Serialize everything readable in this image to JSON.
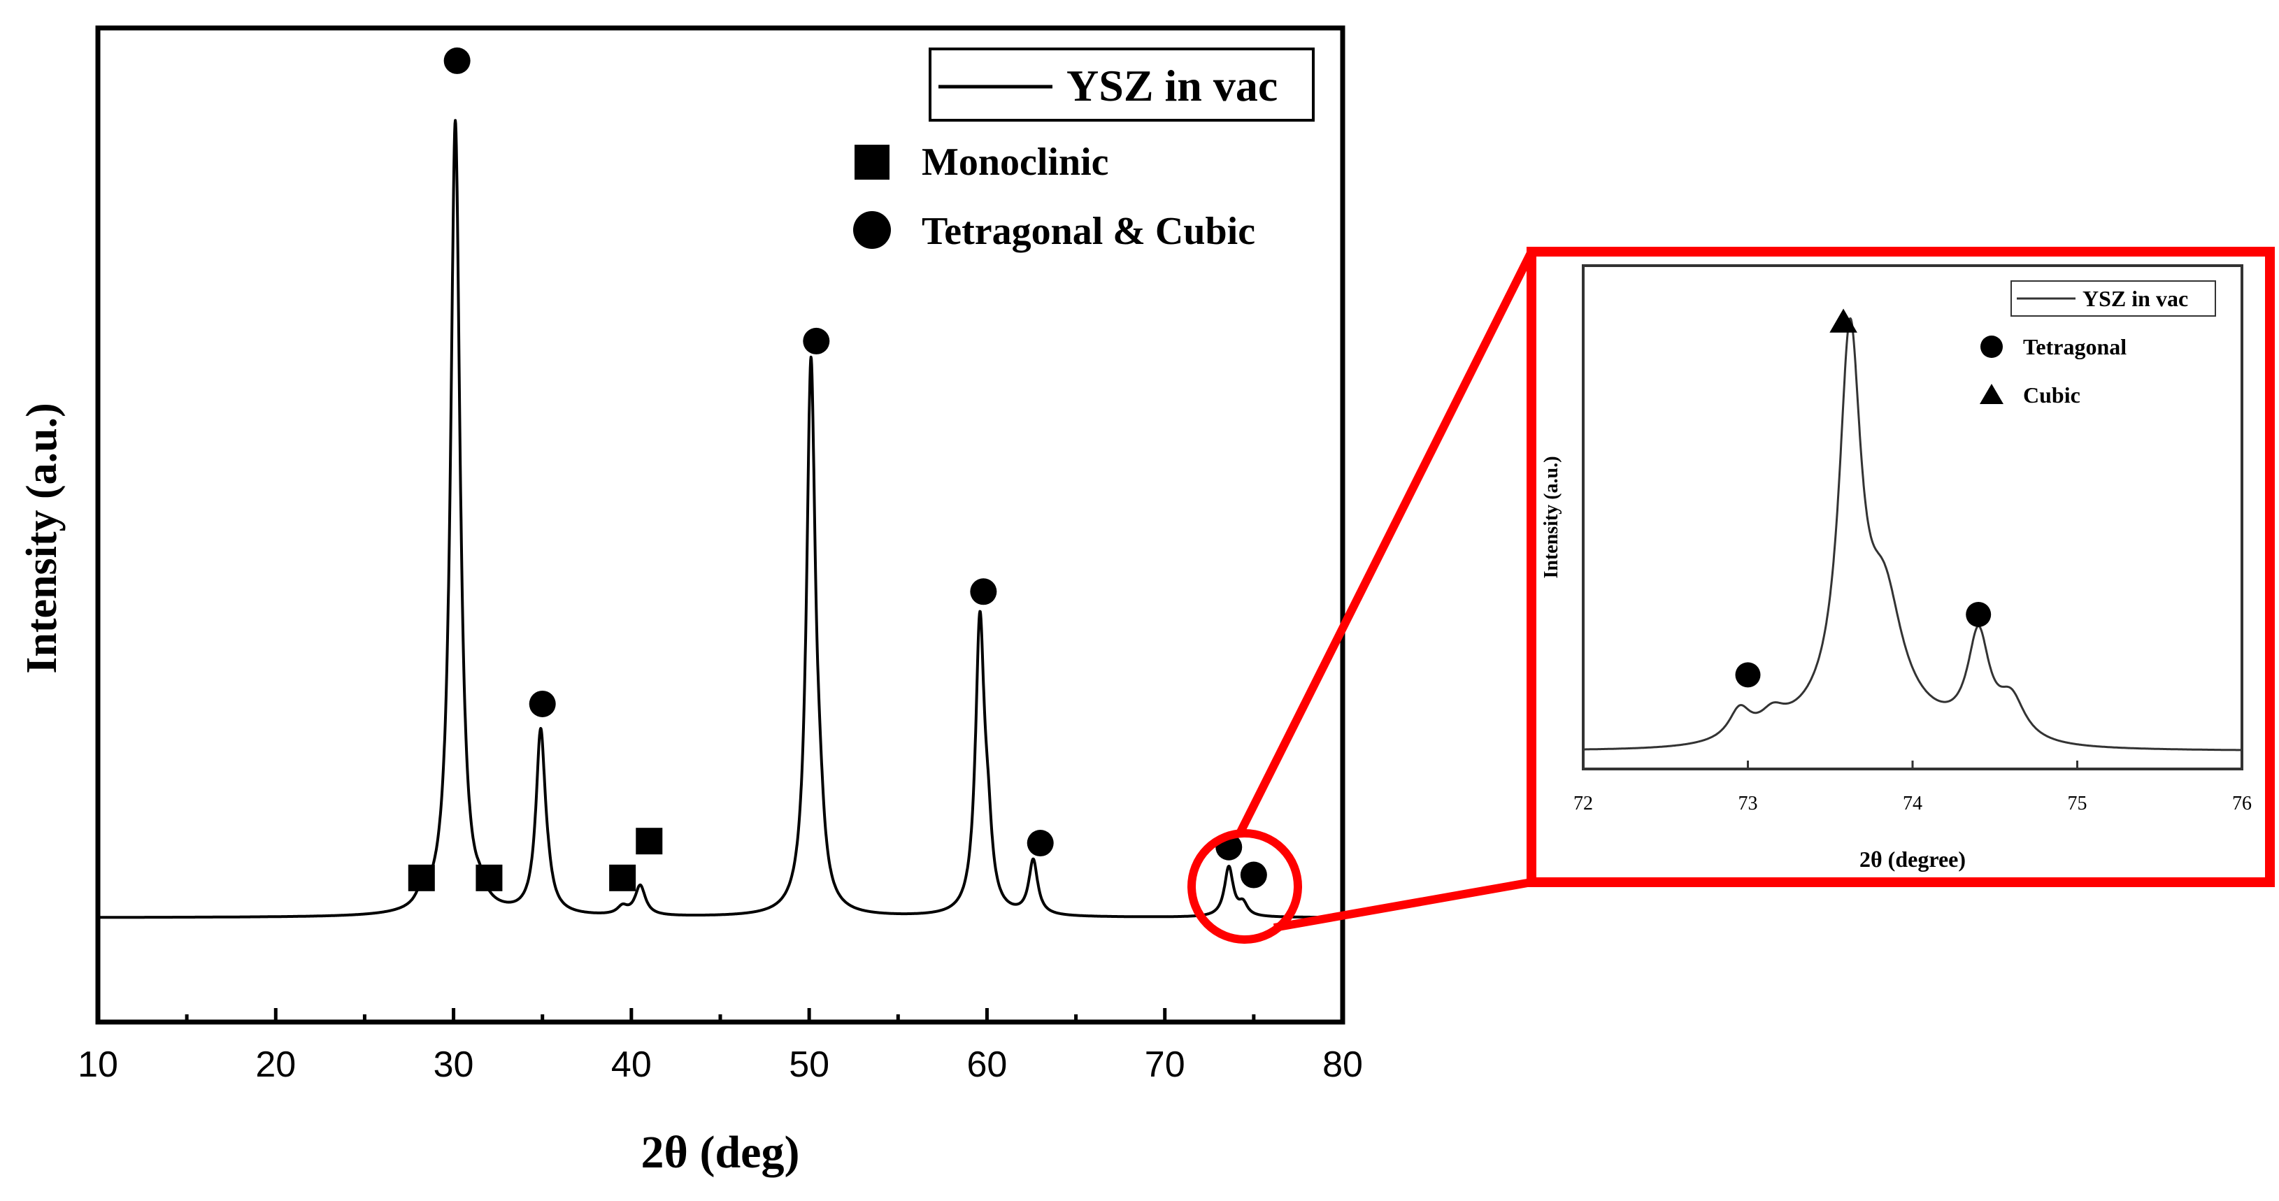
{
  "chart_data": [
    {
      "type": "line",
      "name": "main-xrd",
      "title": "",
      "xlabel": "2θ (deg)",
      "ylabel": "Intensity (a.u.)",
      "xlim": [
        10,
        80
      ],
      "ylim": [
        0,
        100
      ],
      "xticks": [
        10,
        20,
        30,
        40,
        50,
        60,
        70,
        80
      ],
      "xtick_labels": [
        "10",
        "20",
        "30",
        "40",
        "50",
        "60",
        "70",
        "80"
      ],
      "minor_xticks": [
        15,
        25,
        35,
        45,
        55,
        65,
        75
      ],
      "grid": false,
      "legend": {
        "position": "top-right",
        "entries": [
          "YSZ in vac"
        ]
      },
      "series": [
        {
          "name": "YSZ in vac",
          "color": "#000000",
          "baseline": 10.5,
          "peaks": [
            {
              "x": 28.2,
              "height": 1.4,
              "width": 0.35
            },
            {
              "x": 30.1,
              "height": 80.0,
              "width": 0.32
            },
            {
              "x": 31.5,
              "height": 1.1,
              "width": 0.3
            },
            {
              "x": 34.9,
              "height": 18.2,
              "width": 0.32
            },
            {
              "x": 35.3,
              "height": 1.2,
              "width": 0.3
            },
            {
              "x": 39.5,
              "height": 0.8,
              "width": 0.35
            },
            {
              "x": 40.5,
              "height": 3.0,
              "width": 0.35
            },
            {
              "x": 50.1,
              "height": 55.0,
              "width": 0.3
            },
            {
              "x": 50.6,
              "height": 5.0,
              "width": 0.3
            },
            {
              "x": 59.6,
              "height": 29.0,
              "width": 0.3
            },
            {
              "x": 60.05,
              "height": 6.0,
              "width": 0.28
            },
            {
              "x": 62.6,
              "height": 5.5,
              "width": 0.3
            },
            {
              "x": 73.6,
              "height": 5.0,
              "width": 0.3
            },
            {
              "x": 74.4,
              "height": 1.2,
              "width": 0.3
            }
          ]
        }
      ],
      "phase_legend": [
        {
          "marker": "square",
          "label": "Monoclinic"
        },
        {
          "marker": "circle",
          "label": "Tetragonal & Cubic"
        }
      ],
      "markers": [
        {
          "type": "square",
          "x": 28.2,
          "y": 14.5
        },
        {
          "type": "square",
          "x": 32.0,
          "y": 14.5
        },
        {
          "type": "square",
          "x": 39.5,
          "y": 14.5
        },
        {
          "type": "square",
          "x": 41.0,
          "y": 18.2
        },
        {
          "type": "circle",
          "x": 30.2,
          "y": 96.7
        },
        {
          "type": "circle",
          "x": 35.0,
          "y": 32.0
        },
        {
          "type": "circle",
          "x": 50.4,
          "y": 68.5
        },
        {
          "type": "circle",
          "x": 59.8,
          "y": 43.3
        },
        {
          "type": "circle",
          "x": 63.0,
          "y": 18.0
        },
        {
          "type": "circle",
          "x": 73.6,
          "y": 17.6
        },
        {
          "type": "circle",
          "x": 75.0,
          "y": 14.8
        }
      ]
    },
    {
      "type": "line",
      "name": "inset-xrd",
      "title": "",
      "xlabel": "2θ (degree)",
      "ylabel": "Intensity (a.u.)",
      "xlim": [
        72,
        76
      ],
      "ylim": [
        0,
        100
      ],
      "xticks": [
        72,
        73,
        74,
        75,
        76
      ],
      "xtick_labels": [
        "72",
        "73",
        "74",
        "75",
        "76"
      ],
      "grid": false,
      "legend": {
        "position": "top-right",
        "entries": [
          "YSZ in vac"
        ]
      },
      "series": [
        {
          "name": "YSZ in vac",
          "color": "#333333",
          "baseline": 3.5,
          "peaks": [
            {
              "x": 72.95,
              "height": 5.8,
              "width": 0.08
            },
            {
              "x": 73.15,
              "height": 3.5,
              "width": 0.09
            },
            {
              "x": 73.62,
              "height": 74.0,
              "width": 0.08
            },
            {
              "x": 73.83,
              "height": 22.0,
              "width": 0.13
            },
            {
              "x": 74.4,
              "height": 20.0,
              "width": 0.08
            },
            {
              "x": 74.6,
              "height": 8.0,
              "width": 0.1
            }
          ],
          "broad_background": {
            "x": 73.7,
            "height": 5.5,
            "width": 0.6
          }
        }
      ],
      "phase_legend": [
        {
          "marker": "circle",
          "label": "Tetragonal"
        },
        {
          "marker": "triangle",
          "label": "Cubic"
        }
      ],
      "markers": [
        {
          "type": "circle",
          "x": 73.0,
          "y": 18.7
        },
        {
          "type": "triangle",
          "x": 73.58,
          "y": 88.7
        },
        {
          "type": "circle",
          "x": 74.4,
          "y": 30.7
        }
      ]
    }
  ],
  "zoom": {
    "color": "#ff0000"
  }
}
